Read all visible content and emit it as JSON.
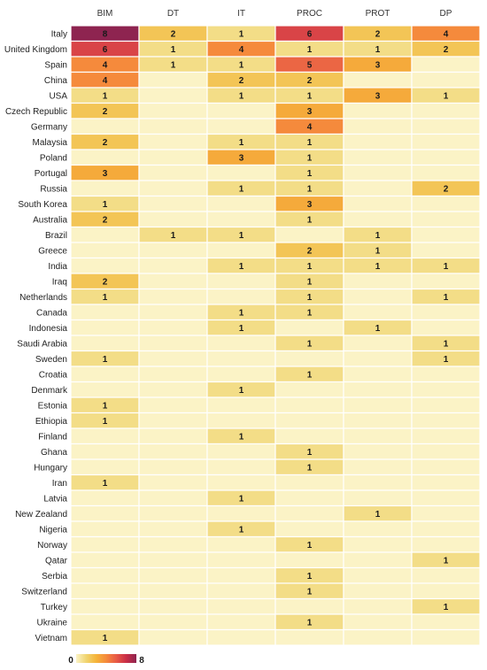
{
  "chart_data": {
    "type": "heatmap",
    "columns": [
      "BIM",
      "DT",
      "IT",
      "PROC",
      "PROT",
      "DP"
    ],
    "rows": [
      "Italy",
      "United Kingdom",
      "Spain",
      "China",
      "USA",
      "Czech Republic",
      "Germany",
      "Malaysia",
      "Poland",
      "Portugal",
      "Russia",
      "South Korea",
      "Australia",
      "Brazil",
      "Greece",
      "India",
      "Iraq",
      "Netherlands",
      "Canada",
      "Indonesia",
      "Saudi Arabia",
      "Sweden",
      "Croatia",
      "Denmark",
      "Estonia",
      "Ethiopia",
      "Finland",
      "Ghana",
      "Hungary",
      "Iran",
      "Latvia",
      "New Zealand",
      "Nigeria",
      "Norway",
      "Qatar",
      "Serbia",
      "Switzerland",
      "Turkey",
      "Ukraine",
      "Vietnam"
    ],
    "values": [
      [
        8,
        2,
        1,
        6,
        2,
        4
      ],
      [
        6,
        1,
        4,
        1,
        1,
        2
      ],
      [
        4,
        1,
        1,
        5,
        3,
        0
      ],
      [
        4,
        0,
        2,
        2,
        0,
        0
      ],
      [
        1,
        0,
        1,
        1,
        3,
        1
      ],
      [
        2,
        0,
        0,
        3,
        0,
        0
      ],
      [
        0,
        0,
        0,
        4,
        0,
        0
      ],
      [
        2,
        0,
        1,
        1,
        0,
        0
      ],
      [
        0,
        0,
        3,
        1,
        0,
        0
      ],
      [
        3,
        0,
        0,
        1,
        0,
        0
      ],
      [
        0,
        0,
        1,
        1,
        0,
        2
      ],
      [
        1,
        0,
        0,
        3,
        0,
        0
      ],
      [
        2,
        0,
        0,
        1,
        0,
        0
      ],
      [
        0,
        1,
        1,
        0,
        1,
        0
      ],
      [
        0,
        0,
        0,
        2,
        1,
        0
      ],
      [
        0,
        0,
        1,
        1,
        1,
        1
      ],
      [
        2,
        0,
        0,
        1,
        0,
        0
      ],
      [
        1,
        0,
        0,
        1,
        0,
        1
      ],
      [
        0,
        0,
        1,
        1,
        0,
        0
      ],
      [
        0,
        0,
        1,
        0,
        1,
        0
      ],
      [
        0,
        0,
        0,
        1,
        0,
        1
      ],
      [
        1,
        0,
        0,
        0,
        0,
        1
      ],
      [
        0,
        0,
        0,
        1,
        0,
        0
      ],
      [
        0,
        0,
        1,
        0,
        0,
        0
      ],
      [
        1,
        0,
        0,
        0,
        0,
        0
      ],
      [
        1,
        0,
        0,
        0,
        0,
        0
      ],
      [
        0,
        0,
        1,
        0,
        0,
        0
      ],
      [
        0,
        0,
        0,
        1,
        0,
        0
      ],
      [
        0,
        0,
        0,
        1,
        0,
        0
      ],
      [
        1,
        0,
        0,
        0,
        0,
        0
      ],
      [
        0,
        0,
        1,
        0,
        0,
        0
      ],
      [
        0,
        0,
        0,
        0,
        1,
        0
      ],
      [
        0,
        0,
        1,
        0,
        0,
        0
      ],
      [
        0,
        0,
        0,
        1,
        0,
        0
      ],
      [
        0,
        0,
        0,
        0,
        0,
        1
      ],
      [
        0,
        0,
        0,
        1,
        0,
        0
      ],
      [
        0,
        0,
        0,
        1,
        0,
        0
      ],
      [
        0,
        0,
        0,
        0,
        0,
        1
      ],
      [
        0,
        0,
        0,
        1,
        0,
        0
      ],
      [
        1,
        0,
        0,
        0,
        0,
        0
      ]
    ],
    "zero_cells_labeled": false,
    "color_scale": {
      "min": 0,
      "max": 8,
      "colors": [
        "#fbf3c6",
        "#f0d572",
        "#f5b43a",
        "#f58a3c",
        "#e85a46",
        "#c92e47",
        "#8e2450"
      ]
    },
    "legend": {
      "position": "bottom-left",
      "min_label": "0",
      "max_label": "8"
    }
  }
}
